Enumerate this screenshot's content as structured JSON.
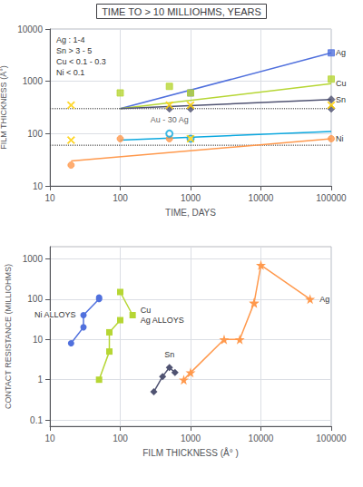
{
  "chart_data": [
    {
      "type": "line",
      "title": "TIME TO > 10 MILLIOHMS, YEARS",
      "xlabel": "TIME, DAYS",
      "ylabel": "FILM THICKNESS (Å°)",
      "log": true,
      "grid": true,
      "xlim": [
        10,
        100000
      ],
      "ylim": [
        10,
        10000
      ],
      "xticks": [
        10,
        100,
        1000,
        10000,
        100000
      ],
      "yticks": [
        10,
        100,
        1000,
        10000
      ],
      "annotations": [
        "Ag : 1-4",
        "Sn > 3 - 5",
        "Cu < 0.1 - 0.3",
        "Ni < 0.1"
      ],
      "hlines": [
        {
          "y": 60,
          "xmin": 10,
          "xmax": 100000,
          "color": "#333333",
          "line_style": "dotted"
        },
        {
          "y": 300,
          "xmin": 10,
          "xmax": 100000,
          "color": "#333333",
          "line_style": "dotted"
        }
      ],
      "series": [
        {
          "name": "Ag",
          "marker": "square",
          "lines": [
            {
              "x": [
                100,
                100000
              ],
              "y": [
                300,
                3500
              ]
            }
          ],
          "points": {
            "x": [
              1000,
              100000
            ],
            "y": [
              600,
              3500
            ]
          }
        },
        {
          "name": "Cu",
          "marker": "square",
          "lines": [
            {
              "x": [
                100,
                100000
              ],
              "y": [
                300,
                900
              ]
            }
          ],
          "points": {
            "x": [
              100,
              500,
              1000,
              100000
            ],
            "y": [
              600,
              800,
              600,
              1100
            ]
          }
        },
        {
          "name": "Sn",
          "marker": "diamond",
          "lines": [
            {
              "x": [
                100,
                100000
              ],
              "y": [
                300,
                450
              ]
            }
          ],
          "points": {
            "x": [
              500,
              1000,
              100000,
              100000
            ],
            "y": [
              300,
              300,
              450,
              300
            ]
          }
        },
        {
          "name": "Ni",
          "marker": "circle",
          "lines": [
            {
              "x": [
                20,
                100000
              ],
              "y": [
                30,
                80
              ]
            }
          ],
          "points": {
            "x": [
              20,
              100,
              500,
              1000,
              100000
            ],
            "y": [
              25,
              80,
              80,
              80,
              80
            ]
          }
        },
        {
          "name": "Au - 30 Ag",
          "marker": "ring",
          "lines": [
            {
              "x": [
                100,
                100000
              ],
              "y": [
                75,
                110
              ]
            }
          ],
          "points": {
            "x": [
              500,
              1000
            ],
            "y": [
              100,
              80
            ]
          }
        },
        {
          "marker": "x",
          "points": {
            "x": [
              20,
              20,
              500,
              1000,
              1000,
              100000
            ],
            "y": [
              350,
              75,
              350,
              350,
              80,
              350
            ]
          }
        }
      ]
    },
    {
      "type": "line",
      "xlabel": "FILM THICKNESS (Å° )",
      "ylabel": "CONTACT RESISTANCE (MILLIOHMS)",
      "log": true,
      "grid": true,
      "xlim": [
        10,
        100000
      ],
      "ylim": [
        0.07,
        2000
      ],
      "xticks": [
        10,
        100,
        1000,
        10000,
        100000
      ],
      "yticks": [
        0.1,
        1,
        10,
        100,
        1000
      ],
      "series": [
        {
          "name": "Ni ALLOYS",
          "marker": "circle",
          "lines": [
            {
              "x": [
                20,
                30,
                30,
                50,
                50
              ],
              "y": [
                8,
                20,
                40,
                100,
                110
              ]
            }
          ]
        },
        {
          "name": "Cu\nAg ALLOYS",
          "marker": "square",
          "lines": [
            {
              "x": [
                50,
                70,
                70,
                100
              ],
              "y": [
                1,
                5,
                15,
                30
              ]
            },
            {
              "x": [
                100,
                150
              ],
              "y": [
                150,
                40
              ]
            }
          ]
        },
        {
          "name": "Sn",
          "marker": "diamond",
          "lines": [
            {
              "x": [
                300,
                400,
                500,
                600
              ],
              "y": [
                0.5,
                1.2,
                2.0,
                1.5
              ]
            }
          ]
        },
        {
          "name": "Ag",
          "marker": "star",
          "lines": [
            {
              "x": [
                800,
                1000,
                3000,
                5000,
                8000
              ],
              "y": [
                1.0,
                1.5,
                10,
                10,
                80
              ]
            },
            {
              "x": [
                8000,
                10000,
                50000
              ],
              "y": [
                80,
                700,
                100
              ]
            }
          ]
        }
      ]
    }
  ]
}
